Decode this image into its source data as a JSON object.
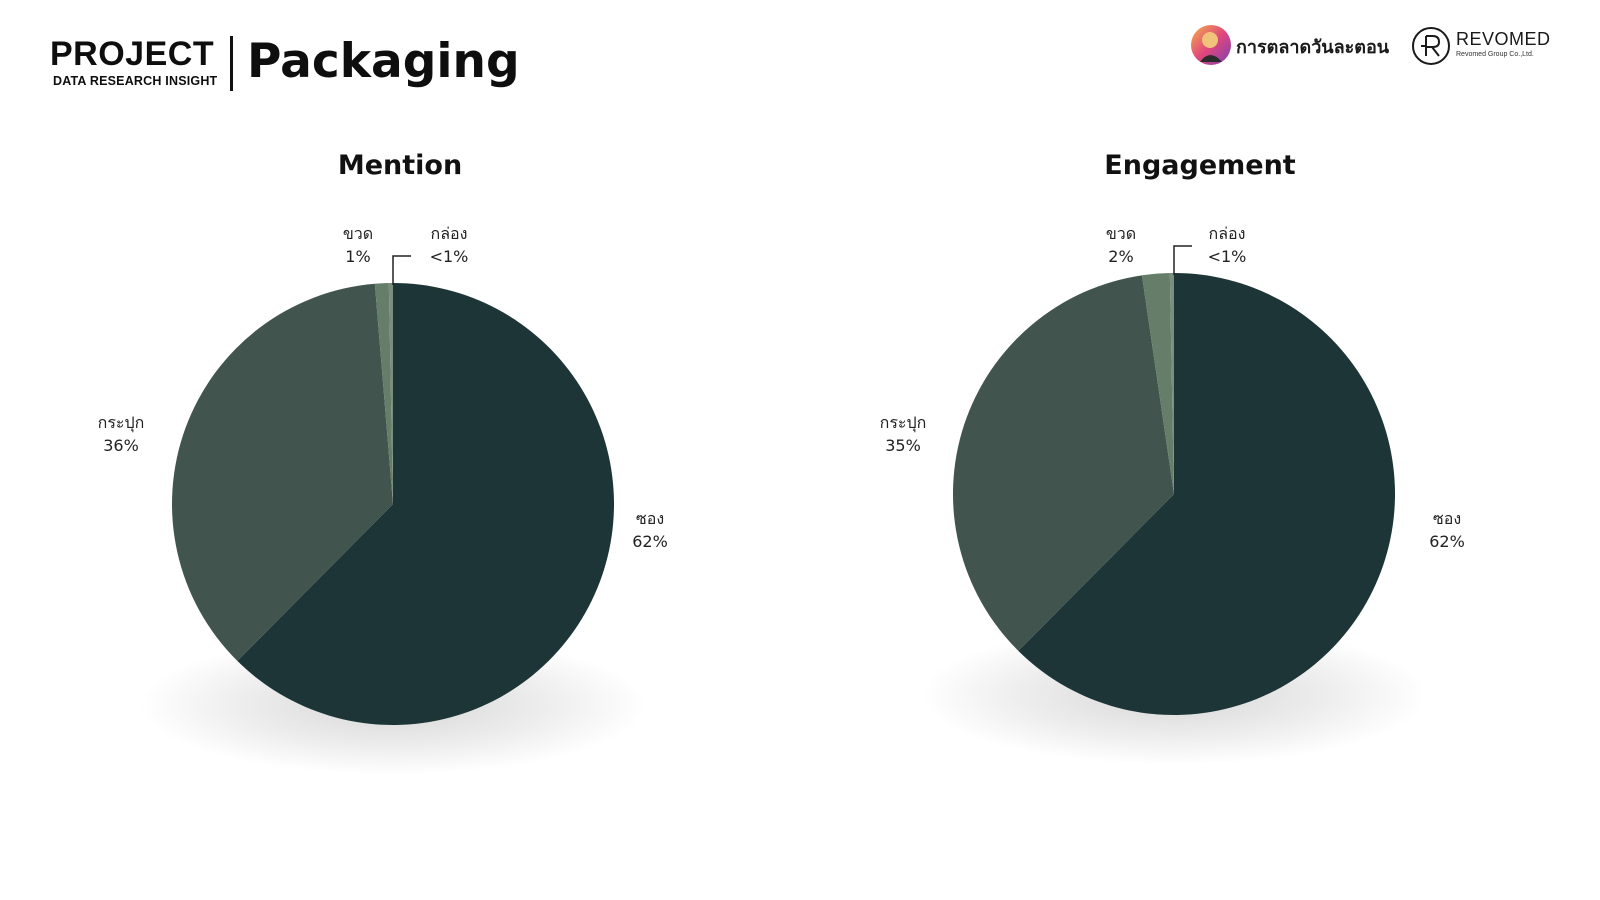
{
  "header": {
    "project_label": "PROJECT",
    "project_sub": "DATA RESEARCH INSIGHT",
    "title": "Packaging"
  },
  "logos": {
    "brand1": "การตลาดวันละตอน",
    "brand2_name": "REVOMED",
    "brand2_sub": "Revomed Group Co.,Ltd."
  },
  "colors": {
    "sachet": "#1d3537",
    "can": "#41544d",
    "bottle": "#667e69",
    "box": "#7a8e7d"
  },
  "chart_data": [
    {
      "type": "pie",
      "title": "Mention",
      "categories": [
        "ซอง",
        "กระปุก",
        "ขวด",
        "กล่อง"
      ],
      "values": [
        62,
        36,
        1,
        0.3
      ],
      "labels": [
        "62%",
        "36%",
        "1%",
        "<1%"
      ]
    },
    {
      "type": "pie",
      "title": "Engagement",
      "categories": [
        "ซอง",
        "กระปุก",
        "ขวด",
        "กล่อง"
      ],
      "values": [
        62,
        35,
        2,
        0.3
      ],
      "labels": [
        "62%",
        "35%",
        "2%",
        "<1%"
      ]
    }
  ]
}
